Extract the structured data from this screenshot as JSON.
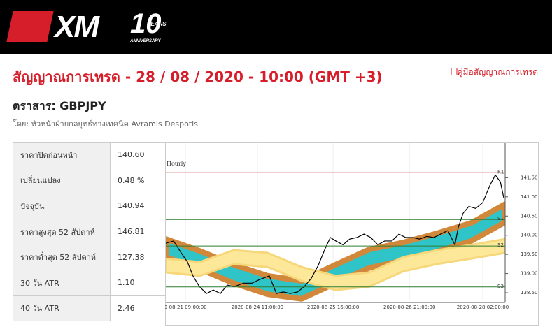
{
  "header": {
    "logo": "XM",
    "badge": "10",
    "badge_sub1": "YEARS",
    "badge_sub2": "ANNIVERSARY"
  },
  "title": "สัญญาณการเทรด - 28 / 08 / 2020 - 10:00 (GMT +3)",
  "guide_link": "คู่มือสัญญาณการเทรด",
  "instrument": "ตราสาร: GBPJPY",
  "byline": "โดย: หัวหน้าฝ่ายกลยุทธ์ทางเทคนิค Avramis Despotis",
  "table": {
    "rows": [
      [
        "ราคาปิดก่อนหน้า",
        "140.60"
      ],
      [
        "เปลี่ยนแปลง",
        "0.48 %"
      ],
      [
        "ปัจจุบัน",
        "140.94"
      ],
      [
        "ราคาสูงสุด 52 สัปดาห์",
        "146.81"
      ],
      [
        "ราคาต่ำสุด 52 สัปดาห์",
        "127.38"
      ],
      [
        "30 วัน ATR",
        "1.10"
      ],
      [
        "40 วัน ATR",
        "2.46"
      ]
    ]
  },
  "chart_data": {
    "type": "line",
    "title": "Hourly",
    "x": [
      0,
      2.3,
      4.3,
      6.4,
      8.0,
      9.9,
      12.0,
      14.0,
      16.1,
      18.1,
      20.2,
      22.9,
      25.4,
      27.8,
      30.5,
      32.6,
      34.6,
      36.7,
      38.8,
      40.8,
      42.9,
      44.9,
      47.0,
      48.5,
      50.1,
      52.2,
      54.2,
      56.3,
      58.4,
      60.4,
      62.5,
      64.5,
      66.6,
      68.7,
      70.7,
      72.8,
      74.8,
      76.9,
      79.0,
      81.0,
      83.1,
      85.2,
      86.2,
      87.6,
      89.3,
      91.3,
      93.4,
      95.5,
      97.1,
      98.6,
      99.6
    ],
    "values": [
      139.79,
      139.85,
      139.57,
      139.3,
      138.94,
      138.66,
      138.48,
      138.57,
      138.48,
      138.7,
      138.66,
      138.75,
      138.75,
      138.85,
      138.94,
      138.48,
      138.52,
      138.48,
      138.52,
      138.66,
      138.88,
      139.21,
      139.66,
      139.94,
      139.85,
      139.75,
      139.9,
      139.94,
      140.03,
      139.94,
      139.75,
      139.85,
      139.85,
      140.03,
      139.94,
      139.94,
      139.9,
      139.97,
      139.94,
      140.03,
      140.12,
      139.75,
      140.21,
      140.57,
      140.75,
      140.7,
      140.85,
      141.3,
      141.57,
      141.39,
      140.97
    ],
    "color": "#000000",
    "band_x": [
      0,
      10,
      20,
      30,
      40,
      50,
      60,
      70,
      80,
      90,
      100
    ],
    "bands": [
      {
        "color": "#2ec4c8",
        "edge": "#d2883a",
        "upper": [
          139.9,
          139.59,
          139.23,
          138.94,
          138.81,
          139.23,
          139.63,
          139.81,
          140.05,
          140.32,
          140.81
        ],
        "lower": [
          139.43,
          139.12,
          138.75,
          138.46,
          138.34,
          138.75,
          139.15,
          139.34,
          139.57,
          139.85,
          140.34
        ]
      },
      {
        "color": "#fde89a",
        "edge": "#f6d77a",
        "upper": [
          139.39,
          139.3,
          139.61,
          139.54,
          139.17,
          138.94,
          139.03,
          139.43,
          139.61,
          139.75,
          139.9
        ],
        "lower": [
          139.03,
          138.94,
          139.25,
          139.17,
          138.81,
          138.57,
          138.66,
          139.06,
          139.25,
          139.39,
          139.54
        ]
      }
    ],
    "levels": [
      {
        "name": "R1",
        "value": 141.63,
        "color": "#c0392b"
      },
      {
        "name": "S1",
        "value": 140.41,
        "color": "#2e7d32"
      },
      {
        "name": "S2",
        "value": 139.72,
        "color": "#2e7d32"
      },
      {
        "name": "S3",
        "value": 138.65,
        "color": "#2e7d32"
      }
    ],
    "xlim": [
      0,
      100
    ],
    "xticks": [
      {
        "value": 5.8,
        "label": "0-08-21 09:00:00"
      },
      {
        "value": 27,
        "label": "2020-08-24 11:00:00"
      },
      {
        "value": 49.3,
        "label": "2020-08-25 16:00:00"
      },
      {
        "value": 71.8,
        "label": "2020-08-26 21:00:00"
      },
      {
        "value": 93.4,
        "label": "2020-08-28 02:00:00"
      }
    ],
    "ylim": [
      138.3,
      142.4
    ],
    "yticks": [
      {
        "value": 138.5,
        "label": "138.50"
      },
      {
        "value": 139,
        "label": "139.00"
      },
      {
        "value": 139.5,
        "label": "139.50"
      },
      {
        "value": 140,
        "label": "140.00"
      },
      {
        "value": 140.5,
        "label": "140.50"
      },
      {
        "value": 141,
        "label": "141.00"
      },
      {
        "value": 141.5,
        "label": "141.50"
      }
    ],
    "grid": true
  }
}
